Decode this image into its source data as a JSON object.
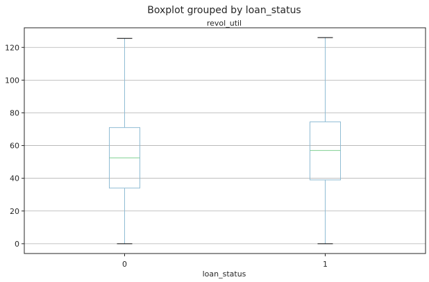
{
  "chart_data": {
    "type": "box",
    "title": "Boxplot grouped by loan_status",
    "subtitle": "revol_util",
    "xlabel": "loan_status",
    "ylabel": "",
    "categories": [
      "0",
      "1"
    ],
    "boxes": [
      {
        "category": "0",
        "whisker_low": 0,
        "q1": 34,
        "median": 52.5,
        "q3": 71,
        "whisker_high": 125.5
      },
      {
        "category": "1",
        "whisker_low": 0,
        "q1": 39,
        "median": 57,
        "q3": 74.5,
        "whisker_high": 126
      }
    ],
    "yticks": [
      0,
      20,
      40,
      60,
      80,
      100,
      120
    ],
    "ylim": [
      -6,
      132
    ],
    "grid": true,
    "colors": {
      "box": "#8fbcd4",
      "median": "#7fcf90",
      "cap": "#000000",
      "grid": "#b0b0b0"
    }
  }
}
